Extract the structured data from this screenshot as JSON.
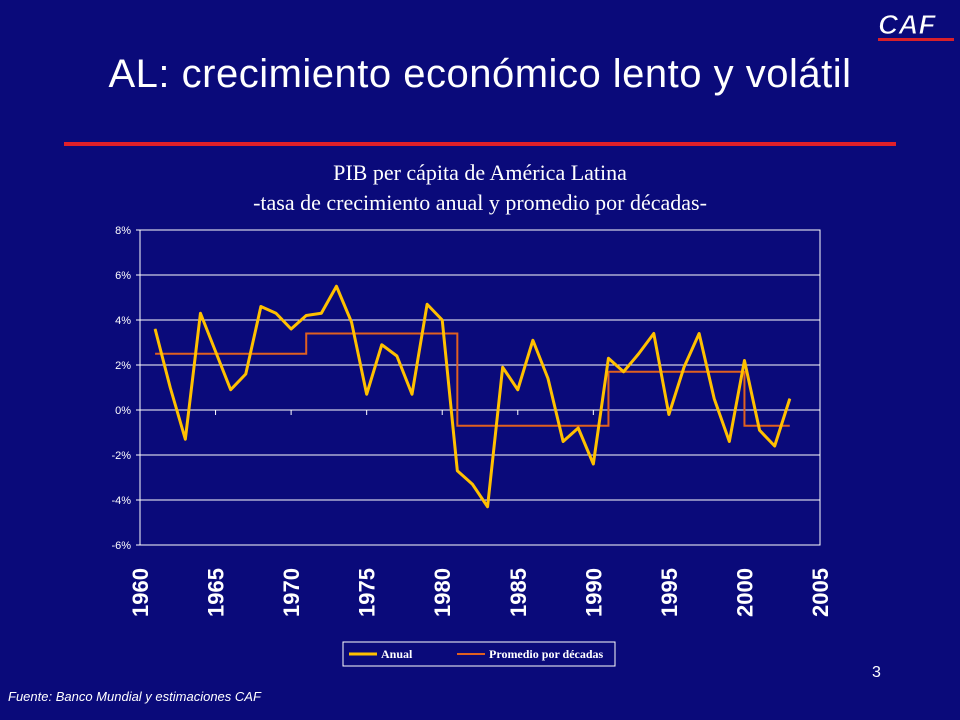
{
  "slide": {
    "title": "AL: crecimiento económico lento y volátil",
    "logo_text": "CAF",
    "source": "Fuente: Banco Mundial y estimaciones CAF",
    "page_number": "3",
    "colors": {
      "background": "#0a0a7a",
      "accent_red": "#e0202a"
    }
  },
  "chart_data": {
    "type": "line",
    "title": "PIB per cápita de América Latina",
    "subtitle": "-tasa de crecimiento anual y promedio por décadas-",
    "x": [
      1961,
      1962,
      1963,
      1964,
      1965,
      1966,
      1967,
      1968,
      1969,
      1970,
      1971,
      1972,
      1973,
      1974,
      1975,
      1976,
      1977,
      1978,
      1979,
      1980,
      1981,
      1982,
      1983,
      1984,
      1985,
      1986,
      1987,
      1988,
      1989,
      1990,
      1991,
      1992,
      1993,
      1994,
      1995,
      1996,
      1997,
      1998,
      1999,
      2000,
      2001,
      2002,
      2003
    ],
    "series": [
      {
        "name": "Anual",
        "color": "#ffc000",
        "values": [
          3.6,
          1.0,
          -1.3,
          4.3,
          2.6,
          0.9,
          1.6,
          4.6,
          4.3,
          3.6,
          4.2,
          4.3,
          5.5,
          3.9,
          0.7,
          2.9,
          2.4,
          0.7,
          4.7,
          4.0,
          -2.7,
          -3.3,
          -4.3,
          1.9,
          0.9,
          3.1,
          1.4,
          -1.4,
          -0.8,
          -2.4,
          2.3,
          1.7,
          2.5,
          3.4,
          -0.2,
          1.9,
          3.4,
          0.5,
          -1.4,
          2.2,
          -0.9,
          -1.6,
          0.5
        ]
      },
      {
        "name": "Promedio por décadas",
        "color": "#e06020",
        "step": true,
        "segments": [
          {
            "from": 1961,
            "to": 1971,
            "value": 2.5
          },
          {
            "from": 1971,
            "to": 1981,
            "value": 3.4
          },
          {
            "from": 1981,
            "to": 1991,
            "value": -0.7
          },
          {
            "from": 1991,
            "to": 2000,
            "value": 1.7
          },
          {
            "from": 2000,
            "to": 2003,
            "value": -0.7
          }
        ]
      }
    ],
    "x_ticks": [
      "1960",
      "1965",
      "1970",
      "1975",
      "1980",
      "1985",
      "1990",
      "1995",
      "2000",
      "2005"
    ],
    "y_ticks": [
      "8%",
      "6%",
      "4%",
      "2%",
      "0%",
      "-2%",
      "-4%",
      "-6%"
    ],
    "xlim": [
      1960,
      2005
    ],
    "ylim": [
      -6,
      8
    ],
    "grid": true,
    "legend_position": "bottom"
  }
}
